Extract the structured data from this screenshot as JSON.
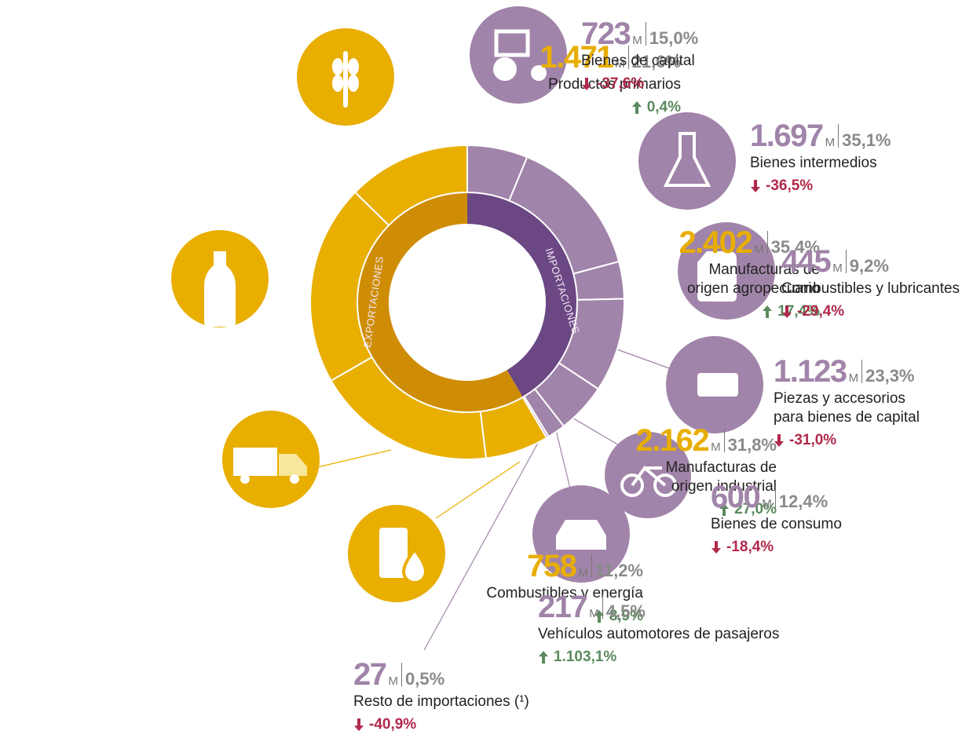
{
  "chart_data": {
    "type": "donut",
    "unit": "M",
    "series": [
      {
        "name": "EXPORTACIONES",
        "color": "#e8ae00",
        "inner_color": "#cf8d06",
        "value_color": "#e8ae00",
        "categories": [
          "Productos primarios",
          "Manufacturas de origen agropecuario",
          "Manufacturas de origen industrial",
          "Combustibles y energía"
        ],
        "values": [
          1471,
          2402,
          2162,
          758
        ],
        "value_labels": [
          "1.471",
          "2.402",
          "2.162",
          "758"
        ],
        "shares": [
          21.6,
          35.4,
          31.8,
          11.2
        ],
        "share_labels": [
          "21,6%",
          "35,4%",
          "31,8%",
          "11,2%"
        ],
        "changes": [
          0.4,
          17.4,
          27.0,
          8.9
        ],
        "change_labels": [
          "0,4%",
          "17,4%",
          "27,0%",
          "8,9%"
        ]
      },
      {
        "name": "IMPORTACIONES",
        "color": "#a184a9",
        "inner_color": "#6b4784",
        "value_color": "#a184a9",
        "categories": [
          "Bienes de capital",
          "Bienes intermedios",
          "Combustibles y lubricantes",
          "Piezas y accesorios para bienes de capital",
          "Bienes de consumo",
          "Vehículos automotores de pasajeros",
          "Resto de importaciones (¹)"
        ],
        "values": [
          723,
          1697,
          445,
          1123,
          600,
          217,
          27
        ],
        "value_labels": [
          "723",
          "1.697",
          "445",
          "1.123",
          "600",
          "217",
          "27"
        ],
        "shares": [
          15.0,
          35.1,
          9.2,
          23.3,
          12.4,
          4.5,
          0.5
        ],
        "share_labels": [
          "15,0%",
          "35,1%",
          "9,2%",
          "23,3%",
          "12,4%",
          "4,5%",
          "0,5%"
        ],
        "changes": [
          -37.6,
          -36.5,
          -29.4,
          -31.0,
          -18.4,
          1103.1,
          -40.9
        ],
        "change_labels": [
          "-37,6%",
          "-36,5%",
          "-29,4%",
          "-31,0%",
          "-18,4%",
          "1.103,1%",
          "-40,9%"
        ]
      }
    ]
  }
}
